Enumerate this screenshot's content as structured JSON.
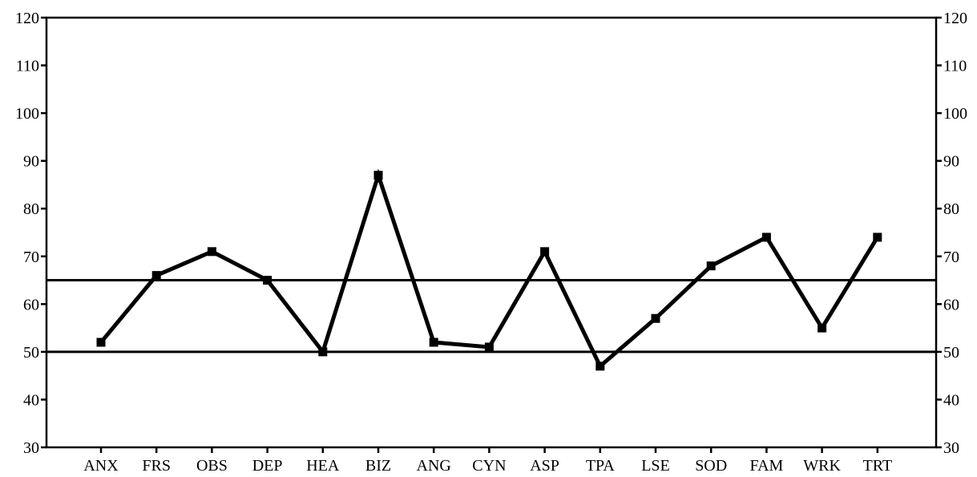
{
  "chart_data": {
    "type": "line",
    "title": "",
    "xlabel": "",
    "ylabel": "",
    "categories": [
      "ANX",
      "FRS",
      "OBS",
      "DEP",
      "HEA",
      "BIZ",
      "ANG",
      "CYN",
      "ASP",
      "TPA",
      "LSE",
      "SOD",
      "FAM",
      "WRK",
      "TRT"
    ],
    "series": [
      {
        "values": [
          52,
          66,
          71,
          65,
          50,
          87,
          52,
          51,
          71,
          47,
          57,
          68,
          74,
          55,
          74
        ]
      }
    ],
    "ylim": [
      30,
      120
    ],
    "yticks": [
      30,
      40,
      50,
      60,
      70,
      80,
      90,
      100,
      110,
      120
    ],
    "yticks_right": [
      30,
      40,
      50,
      60,
      70,
      80,
      90,
      100,
      110,
      120
    ],
    "reference_lines": [
      50,
      65
    ],
    "grid": false,
    "legend": "none",
    "colors": {
      "line": "#000000",
      "axis": "#000000",
      "background": "#ffffff"
    }
  }
}
